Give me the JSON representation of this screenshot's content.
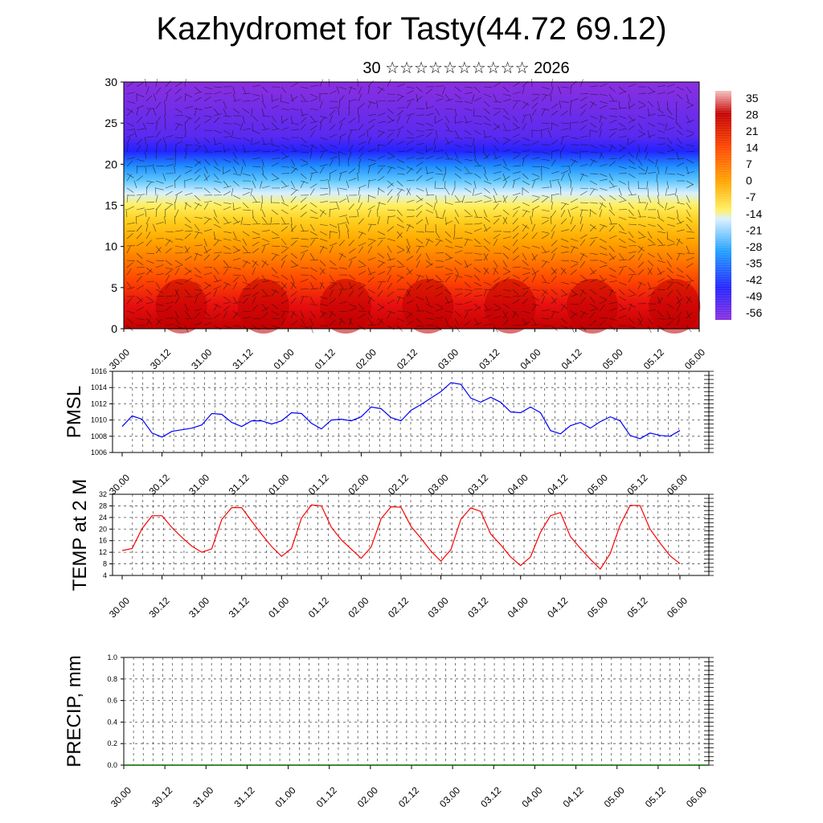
{
  "header": {
    "title": "Kazhydromet for Tasty(44.72 69.12)",
    "subtitle": "30 ☆☆☆☆☆☆☆☆☆☆ 2026"
  },
  "colors": {
    "pmsl_line": "#0000ff",
    "temp_line": "#ff0000",
    "precip_line": "#006400",
    "grid": "#555555",
    "cross_section_scale": [
      "#8b2fe0",
      "#5a2af0",
      "#2323ff",
      "#1e5aff",
      "#1ea0ff",
      "#28c8ff",
      "#a0e0ff",
      "#fff060",
      "#ffd020",
      "#ffa800",
      "#ff7a00",
      "#ff4800",
      "#e81010",
      "#c40000"
    ]
  },
  "chart_data": [
    {
      "type": "heatmap",
      "name": "cross-section",
      "ylim": [
        0,
        30
      ],
      "yticks": [
        "0",
        "5",
        "10",
        "15",
        "20",
        "25",
        "30"
      ],
      "xticks": [
        "30.00",
        "30.12",
        "31.00",
        "31.12",
        "01.00",
        "01.12",
        "02.00",
        "02.12",
        "03.00",
        "03.12",
        "04.00",
        "04.12",
        "05.00",
        "05.12",
        "06.00"
      ],
      "colorbar_labels": [
        "35",
        "28",
        "21",
        "14",
        "7",
        "0",
        "-7",
        "-14",
        "-21",
        "-28",
        "-35",
        "-42",
        "-49",
        "-56"
      ],
      "colorbar_range": [
        -60,
        38
      ]
    },
    {
      "type": "line",
      "name": "pmsl",
      "ylabel": "PMSL",
      "ylim": [
        1006,
        1016
      ],
      "yticks": [
        "1006",
        "1008",
        "1010",
        "1012",
        "1014",
        "1016"
      ],
      "xticks": [
        "30.00",
        "30.12",
        "31.00",
        "31.12",
        "01.00",
        "01.12",
        "02.00",
        "02.12",
        "03.00",
        "03.12",
        "04.00",
        "04.12",
        "05.00",
        "05.12",
        "06.00"
      ],
      "values": [
        1009.2,
        1010.5,
        1010.1,
        1008.4,
        1007.9,
        1008.6,
        1008.8,
        1009.0,
        1009.4,
        1010.8,
        1010.7,
        1009.7,
        1009.2,
        1009.9,
        1009.9,
        1009.5,
        1009.9,
        1010.9,
        1010.8,
        1009.6,
        1008.9,
        1010.0,
        1010.1,
        1009.9,
        1010.4,
        1011.6,
        1011.4,
        1010.3,
        1009.9,
        1011.2,
        1011.9,
        1012.7,
        1013.5,
        1014.6,
        1014.4,
        1012.7,
        1012.2,
        1012.8,
        1012.2,
        1011.0,
        1010.9,
        1011.6,
        1010.9,
        1008.7,
        1008.3,
        1009.3,
        1009.7,
        1009.0,
        1009.8,
        1010.4,
        1009.9,
        1008.1,
        1007.7,
        1008.4,
        1008.1,
        1008.0,
        1008.7
      ]
    },
    {
      "type": "line",
      "name": "temperature",
      "ylabel": "TEMP at 2 M",
      "ylim": [
        4,
        32
      ],
      "yticks": [
        "4",
        "8",
        "12",
        "16",
        "20",
        "24",
        "28",
        "32"
      ],
      "xticks": [
        "30.00",
        "30.12",
        "31.00",
        "31.12",
        "01.00",
        "01.12",
        "02.00",
        "02.12",
        "03.00",
        "03.12",
        "04.00",
        "04.12",
        "05.00",
        "05.12",
        "06.00"
      ],
      "values": [
        12.6,
        13.3,
        20.2,
        24.6,
        24.6,
        20.5,
        17.1,
        14.1,
        12.0,
        13.2,
        23.3,
        27.4,
        27.4,
        22.7,
        18.2,
        14.0,
        10.6,
        13.3,
        23.8,
        28.3,
        28.0,
        20.6,
        16.3,
        13.1,
        9.9,
        13.8,
        23.6,
        27.7,
        27.5,
        20.9,
        16.8,
        12.4,
        8.9,
        12.9,
        23.4,
        27.3,
        26.1,
        18.3,
        14.6,
        10.4,
        7.4,
        10.4,
        18.9,
        24.6,
        25.7,
        17.4,
        13.4,
        9.6,
        6.2,
        11.6,
        21.4,
        28.2,
        28.1,
        20.0,
        15.2,
        10.8,
        8.1
      ]
    },
    {
      "type": "line",
      "name": "precipitation",
      "ylabel": "PRECIP, mm",
      "ylim": [
        0,
        1
      ],
      "yticks": [
        "0.0",
        "0.2",
        "0.4",
        "0.6",
        "0.8",
        "1.0"
      ],
      "xticks": [
        "30.00",
        "30.12",
        "31.00",
        "31.12",
        "01.00",
        "01.12",
        "02.00",
        "02.12",
        "03.00",
        "03.12",
        "04.00",
        "04.12",
        "05.00",
        "05.12",
        "06.00"
      ],
      "values": [
        0,
        0,
        0,
        0,
        0,
        0,
        0,
        0,
        0,
        0,
        0,
        0,
        0,
        0,
        0,
        0,
        0,
        0,
        0,
        0,
        0,
        0,
        0,
        0,
        0,
        0,
        0,
        0,
        0,
        0,
        0,
        0,
        0,
        0,
        0,
        0,
        0,
        0,
        0,
        0,
        0,
        0,
        0,
        0,
        0,
        0,
        0,
        0,
        0,
        0,
        0,
        0,
        0,
        0,
        0,
        0,
        0
      ]
    }
  ]
}
